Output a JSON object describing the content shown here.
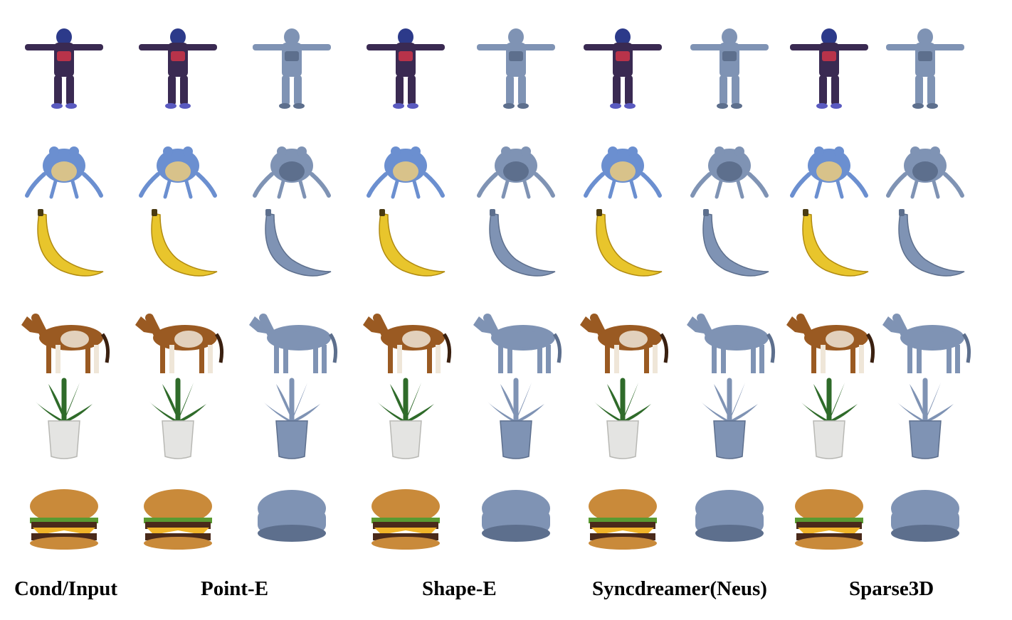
{
  "column_labels": [
    "Cond/Input",
    "Point-E",
    "Shape-E",
    "Syncdreamer(Neus)",
    "Sparse3D"
  ],
  "rows": [
    "character",
    "frog",
    "banana",
    "horse",
    "plant",
    "burger"
  ],
  "columns": [
    {
      "kind": "input"
    },
    {
      "kind": "textured"
    },
    {
      "kind": "mesh"
    },
    {
      "kind": "textured"
    },
    {
      "kind": "mesh"
    },
    {
      "kind": "textured"
    },
    {
      "kind": "mesh"
    },
    {
      "kind": "textured"
    },
    {
      "kind": "mesh"
    }
  ],
  "colors": {
    "mesh": "#7f93b4",
    "mesh_shadow": "#5d6f8d",
    "character_suit": "#3a2a52",
    "character_accent": "#b8334a",
    "frog": "#6b8fd0",
    "banana": "#e8c52c",
    "banana_tip": "#4a3b12",
    "horse": "#9a5a22",
    "horse_white": "#efe6d8",
    "leaf": "#2f6b2a",
    "pot": "#e4e4e2",
    "bun": "#c98a3a",
    "cheese": "#f0b428",
    "patty": "#4a2a1a",
    "lettuce": "#5a9a32"
  }
}
